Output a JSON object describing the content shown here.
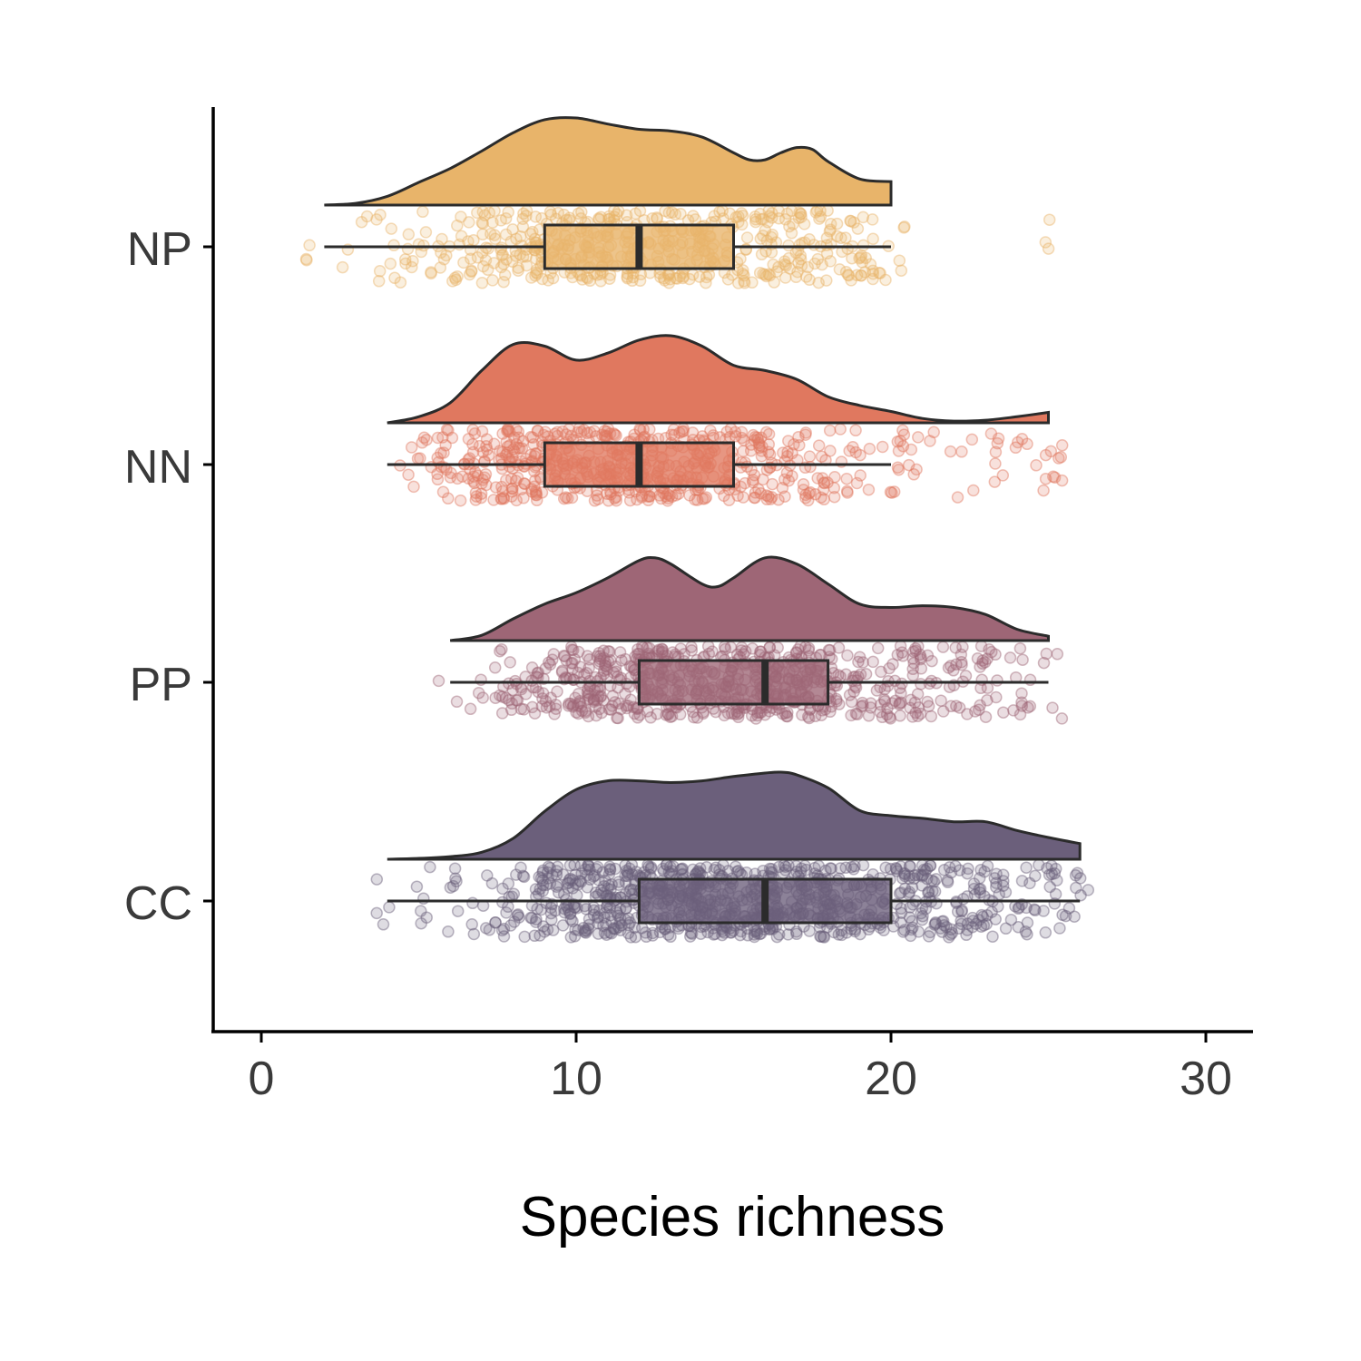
{
  "chart_data": {
    "type": "raincloud",
    "xlabel": "Species richness",
    "ylabel": "",
    "xlim": [
      -1.5,
      31.5
    ],
    "xticks": [
      0,
      10,
      20,
      30
    ],
    "grid": false,
    "legend": "none",
    "categories": [
      "NP",
      "NN",
      "PP",
      "CC"
    ],
    "series": [
      {
        "category": "NP",
        "color": "#E8B46A",
        "box": {
          "min": 2,
          "q1": 9,
          "median": 12,
          "q3": 15,
          "max": 20
        },
        "density": {
          "x": [
            2,
            3,
            4,
            5,
            6,
            7,
            8,
            9,
            10,
            11,
            12,
            13,
            14,
            15,
            15.5,
            16,
            16.5,
            17,
            17.5,
            18,
            19,
            20
          ],
          "y": [
            0.0,
            0.02,
            0.1,
            0.26,
            0.42,
            0.62,
            0.83,
            0.98,
            1.0,
            0.93,
            0.87,
            0.85,
            0.78,
            0.6,
            0.52,
            0.52,
            0.6,
            0.66,
            0.64,
            0.5,
            0.3,
            0.27
          ]
        },
        "points": {
          "count": 550,
          "outliers": [
            1.6,
            25.0
          ]
        }
      },
      {
        "category": "NN",
        "color": "#E0785F",
        "box": {
          "min": 4,
          "q1": 9,
          "median": 12,
          "q3": 15,
          "max": 20
        },
        "density": {
          "x": [
            4,
            5,
            6,
            7,
            8,
            9,
            10,
            11,
            12,
            13,
            14,
            15,
            16,
            17,
            18,
            19,
            20,
            21,
            22,
            23,
            24,
            25
          ],
          "y": [
            0.0,
            0.07,
            0.23,
            0.6,
            0.9,
            0.88,
            0.72,
            0.8,
            0.95,
            1.0,
            0.88,
            0.66,
            0.6,
            0.5,
            0.3,
            0.2,
            0.13,
            0.05,
            0.02,
            0.03,
            0.07,
            0.12
          ]
        },
        "points": {
          "count": 650,
          "outliers": [
            25.0,
            25.3
          ]
        }
      },
      {
        "category": "PP",
        "color": "#9E6676",
        "box": {
          "min": 6,
          "q1": 12,
          "median": 16,
          "q3": 18,
          "max": 25
        },
        "density": {
          "x": [
            6,
            7,
            8,
            9,
            10,
            11,
            12,
            12.5,
            13,
            14,
            14.5,
            15,
            16,
            17,
            18,
            19,
            20,
            21,
            22,
            23,
            24,
            25
          ],
          "y": [
            0.0,
            0.06,
            0.25,
            0.42,
            0.55,
            0.72,
            0.92,
            0.95,
            0.88,
            0.65,
            0.62,
            0.72,
            0.95,
            0.88,
            0.65,
            0.42,
            0.38,
            0.4,
            0.38,
            0.3,
            0.13,
            0.05
          ]
        },
        "points": {
          "count": 750,
          "outliers": []
        }
      },
      {
        "category": "CC",
        "color": "#6B5F7B",
        "box": {
          "min": 4,
          "q1": 12,
          "median": 16,
          "q3": 20,
          "max": 26
        },
        "density": {
          "x": [
            4,
            5,
            6,
            7,
            8,
            9,
            10,
            11,
            12,
            13,
            14,
            15,
            16,
            16.5,
            17,
            18,
            19,
            20,
            21,
            22,
            23,
            24,
            25,
            26
          ],
          "y": [
            0.0,
            0.01,
            0.03,
            0.08,
            0.24,
            0.55,
            0.8,
            0.9,
            0.9,
            0.88,
            0.9,
            0.95,
            0.99,
            1.0,
            0.97,
            0.82,
            0.56,
            0.5,
            0.47,
            0.43,
            0.43,
            0.33,
            0.25,
            0.18
          ]
        },
        "points": {
          "count": 950,
          "outliers": [
            3.8,
            6.0
          ]
        }
      }
    ]
  }
}
